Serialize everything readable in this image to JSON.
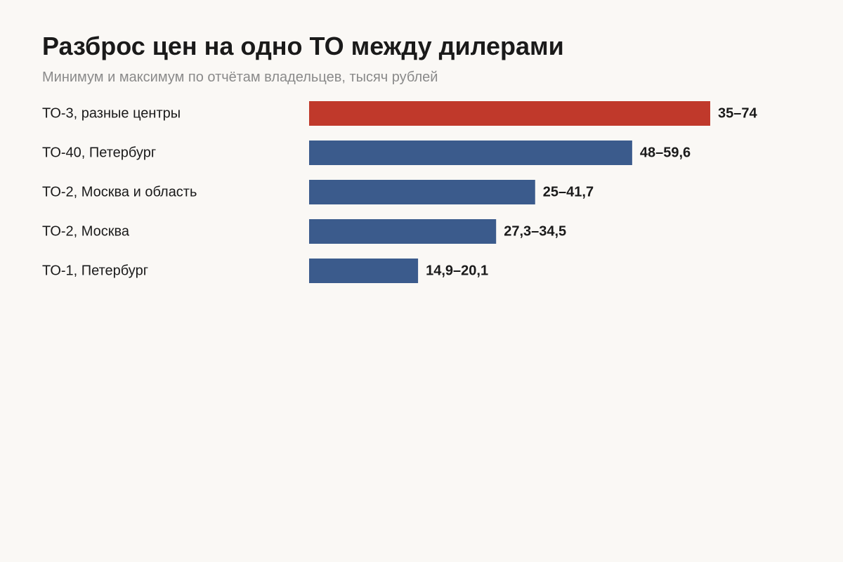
{
  "chart_data": {
    "type": "bar",
    "orientation": "horizontal",
    "title": "Разброс цен на одно ТО между дилерами",
    "subtitle": "Минимум и максимум по отчётам владельцев, тысяч рублей",
    "categories": [
      "ТО-3, разные центры",
      "ТО-40, Петербург",
      "ТО-2, Москва и область",
      "ТО-2, Москва",
      "ТО-1, Петербург"
    ],
    "min": [
      35,
      48,
      25,
      27.3,
      14.9
    ],
    "max": [
      74,
      59.6,
      41.7,
      34.5,
      20.1
    ],
    "value_labels": [
      "35–74",
      "48–59,6",
      "25–41,7",
      "27,3–34,5",
      "14,9–20,1"
    ],
    "highlight_index": 0,
    "colors": {
      "highlight": "#c0392b",
      "bar": "#3b5b8c"
    },
    "grid": false,
    "legend": false
  }
}
